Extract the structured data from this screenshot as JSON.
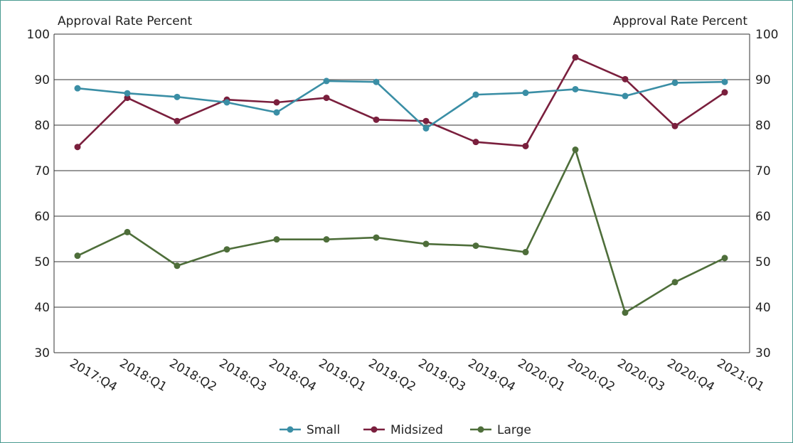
{
  "chart_data": {
    "type": "line",
    "ylabel_left": "Approval Rate Percent",
    "ylabel_right": "Approval Rate Percent",
    "ylim": [
      30,
      100
    ],
    "yticks": [
      30,
      40,
      50,
      60,
      70,
      80,
      90,
      100
    ],
    "grid": true,
    "legend_position": "bottom",
    "categories": [
      "2017:Q4",
      "2018:Q1",
      "2018:Q2",
      "2018:Q3",
      "2018:Q4",
      "2019:Q1",
      "2019:Q2",
      "2019:Q3",
      "2019:Q4",
      "2020:Q1",
      "2020:Q2",
      "2020:Q3",
      "2020:Q4",
      "2021:Q1"
    ],
    "series": [
      {
        "name": "Small",
        "color": "#3a8ea5",
        "values": [
          88.1,
          87.0,
          86.2,
          85.0,
          82.8,
          89.7,
          89.5,
          79.3,
          86.7,
          87.1,
          87.9,
          86.4,
          89.3,
          89.5
        ]
      },
      {
        "name": "Midsized",
        "color": "#7a1f3d",
        "values": [
          75.2,
          86.0,
          80.9,
          85.6,
          85.0,
          86.0,
          81.2,
          80.9,
          76.3,
          75.4,
          94.9,
          90.1,
          79.8,
          87.2
        ]
      },
      {
        "name": "Large",
        "color": "#4e6e3a",
        "values": [
          51.3,
          56.5,
          49.1,
          52.7,
          54.9,
          54.9,
          55.3,
          53.9,
          53.5,
          52.1,
          74.6,
          38.8,
          45.5,
          50.8
        ]
      }
    ]
  }
}
